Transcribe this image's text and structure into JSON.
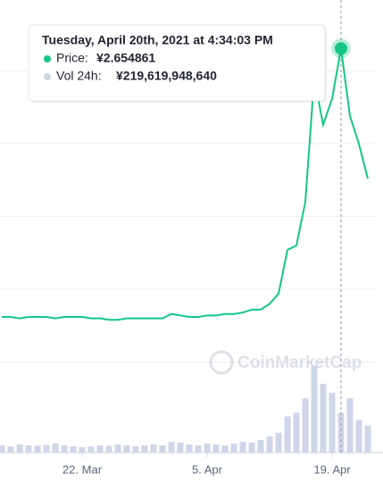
{
  "chart_data": {
    "type": "line",
    "categories": [
      null,
      null,
      null,
      null,
      null,
      null,
      null,
      null,
      null,
      "22. Mar",
      null,
      null,
      null,
      null,
      null,
      null,
      null,
      null,
      null,
      null,
      null,
      null,
      null,
      "5. Apr",
      null,
      null,
      null,
      null,
      null,
      null,
      null,
      null,
      null,
      null,
      null,
      null,
      null,
      "19. Apr",
      null,
      null,
      null,
      null
    ],
    "series": [
      {
        "name": "Price",
        "color": "#16c784",
        "values": [
          0.81,
          0.81,
          0.8,
          0.81,
          0.81,
          0.81,
          0.8,
          0.81,
          0.81,
          0.81,
          0.8,
          0.8,
          0.79,
          0.79,
          0.8,
          0.8,
          0.8,
          0.8,
          0.8,
          0.83,
          0.82,
          0.81,
          0.81,
          0.82,
          0.82,
          0.83,
          0.83,
          0.84,
          0.86,
          0.86,
          0.9,
          0.97,
          1.27,
          1.3,
          1.6,
          2.45,
          2.13,
          2.31,
          2.654861,
          2.19,
          2.0,
          1.76
        ]
      },
      {
        "name": "Vol 24h",
        "color": "#cfd6ea",
        "axis": "y2",
        "values": [
          40000000000,
          35000000000,
          45000000000,
          40000000000,
          38000000000,
          42000000000,
          50000000000,
          40000000000,
          35000000000,
          30000000000,
          35000000000,
          40000000000,
          38000000000,
          45000000000,
          40000000000,
          35000000000,
          40000000000,
          45000000000,
          40000000000,
          60000000000,
          55000000000,
          45000000000,
          40000000000,
          50000000000,
          45000000000,
          40000000000,
          50000000000,
          60000000000,
          55000000000,
          70000000000,
          90000000000,
          110000000000,
          200000000000,
          220000000000,
          300000000000,
          480000000000,
          380000000000,
          330000000000,
          219619948640,
          300000000000,
          180000000000,
          150000000000
        ]
      }
    ],
    "ylim": [
      0,
      3
    ],
    "yticks": [
      0.5,
      1,
      1.5,
      2,
      2.5
    ],
    "y2lim": [
      0,
      2500000000000
    ],
    "grid": true,
    "watermark": "CoinMarketCap",
    "tooltip": {
      "date": "Tuesday, April 20th, 2021 at 4:34:03 PM",
      "price_label": "Price:",
      "price": "¥2.654861",
      "vol_label": "Vol 24h:",
      "vol": "¥219,619,948,640",
      "index": 38
    }
  }
}
